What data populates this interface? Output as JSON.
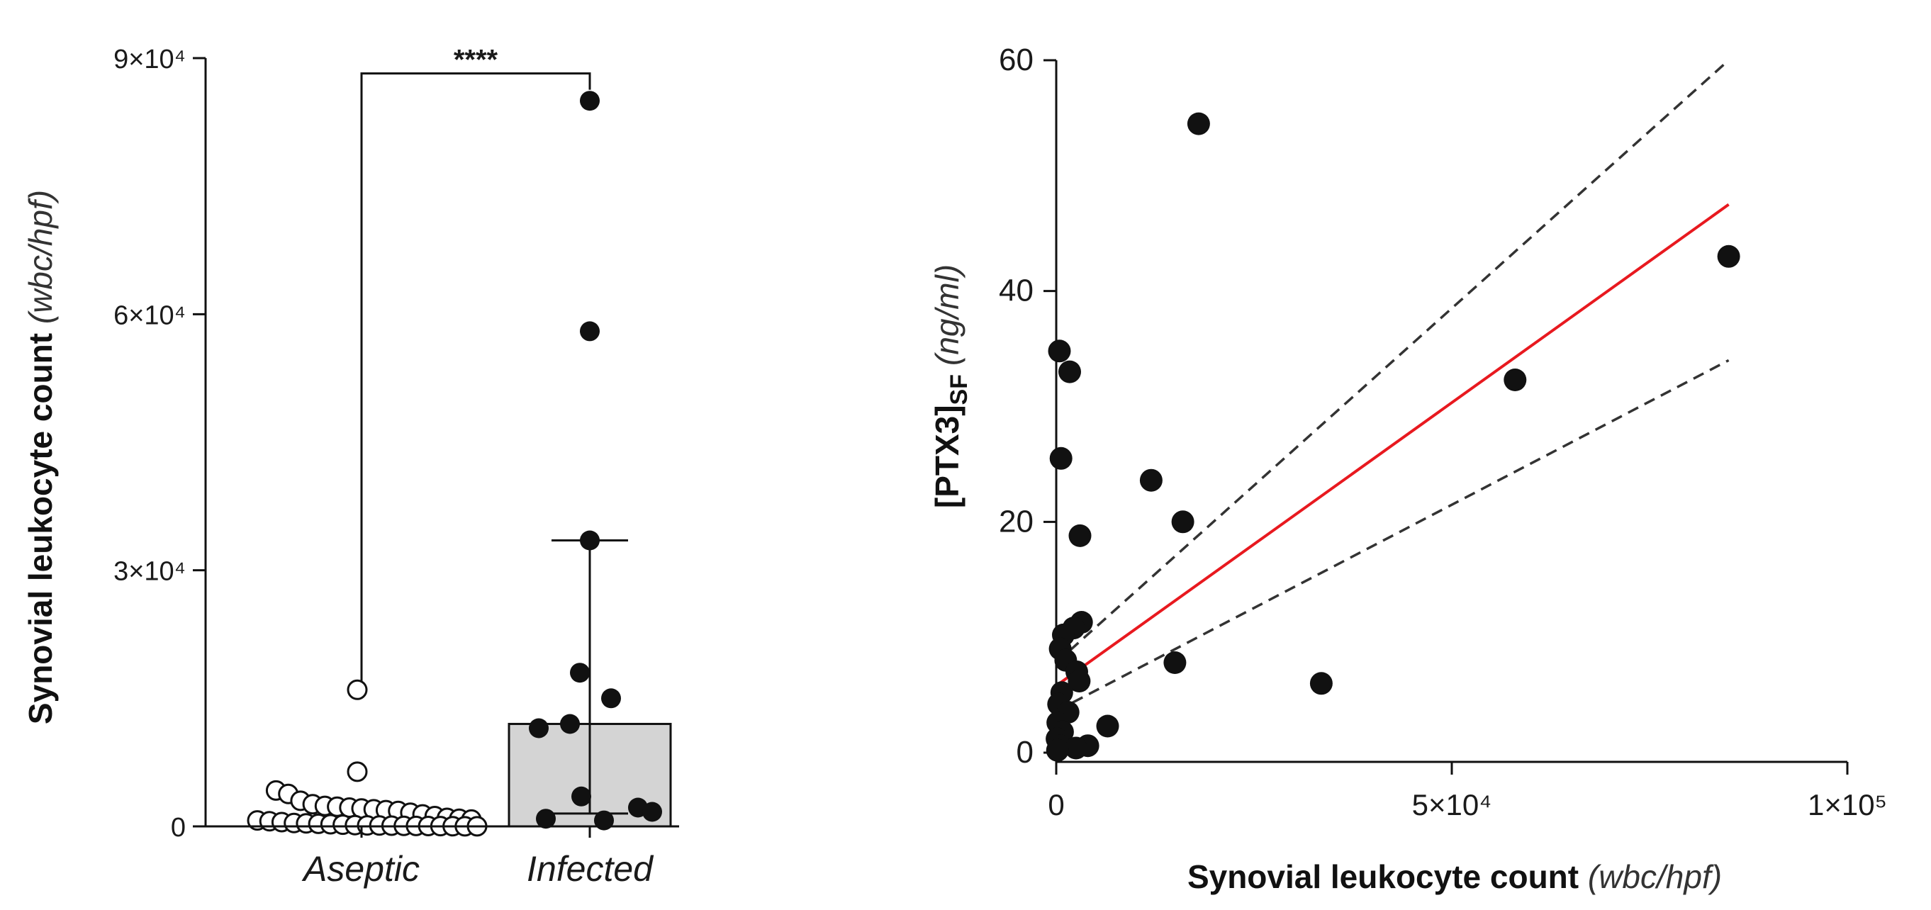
{
  "chart_data": [
    {
      "type": "bar",
      "name": "leukocyte-by-group",
      "categories": [
        "Aseptic",
        "Infected"
      ],
      "bar_values": [
        0,
        12000
      ],
      "error_bars": [
        null,
        {
          "low": 1500,
          "high": 33500
        }
      ],
      "ylabel": "Synovial leukocyte count",
      "ylabel_unit": "(wbc/hpf)",
      "ylim": [
        0,
        90000
      ],
      "y_ticks": [
        0,
        30000,
        60000,
        90000
      ],
      "y_tick_labels": [
        "0",
        "3×10⁴",
        "6×10⁴",
        "9×10⁴"
      ],
      "significance_label": "****",
      "points": {
        "Aseptic": {
          "marker": "open-circle",
          "values": [
            16000,
            6400,
            4200,
            3800,
            3000,
            2600,
            2400,
            2300,
            2200,
            2100,
            2000,
            1900,
            1800,
            1600,
            1400,
            1200,
            1000,
            900,
            800,
            700,
            600,
            500,
            400,
            350,
            300,
            250,
            200,
            150,
            120,
            100,
            80,
            60,
            50,
            40,
            30,
            20,
            10,
            5
          ]
        },
        "Infected": {
          "marker": "filled-circle",
          "values": [
            85000,
            58000,
            33500,
            18000,
            15000,
            12000,
            11500,
            3500,
            2200,
            1700,
            900,
            700
          ]
        }
      }
    },
    {
      "type": "scatter",
      "name": "ptx3-vs-leukocyte",
      "xlabel": "Synovial leukocyte count",
      "xlabel_unit": "(wbc/hpf)",
      "ylabel_main": "[PTX3]",
      "ylabel_sub": "SF",
      "ylabel_unit": "(ng/ml)",
      "xlim": [
        0,
        100000
      ],
      "ylim": [
        0,
        60
      ],
      "x_ticks": [
        0,
        50000,
        100000
      ],
      "x_tick_labels": [
        "0",
        "5×10⁴",
        "1×10⁵"
      ],
      "y_ticks": [
        0,
        20,
        40,
        60
      ],
      "y_tick_labels": [
        "0",
        "20",
        "40",
        "60"
      ],
      "points": [
        {
          "x": 18000,
          "y": 54.5
        },
        {
          "x": 85000,
          "y": 43
        },
        {
          "x": 58000,
          "y": 32.3
        },
        {
          "x": 12000,
          "y": 23.6
        },
        {
          "x": 16000,
          "y": 20
        },
        {
          "x": 3000,
          "y": 18.8
        },
        {
          "x": 33500,
          "y": 6
        },
        {
          "x": 15000,
          "y": 7.8
        },
        {
          "x": 6500,
          "y": 2.3
        },
        {
          "x": 400,
          "y": 34.8
        },
        {
          "x": 1700,
          "y": 33
        },
        {
          "x": 600,
          "y": 25.5
        },
        {
          "x": 3200,
          "y": 11.3
        },
        {
          "x": 2200,
          "y": 10.8
        },
        {
          "x": 900,
          "y": 10.2
        },
        {
          "x": 500,
          "y": 9
        },
        {
          "x": 1200,
          "y": 8
        },
        {
          "x": 2600,
          "y": 7
        },
        {
          "x": 2900,
          "y": 6.2
        },
        {
          "x": 700,
          "y": 5.2
        },
        {
          "x": 300,
          "y": 4.2
        },
        {
          "x": 1500,
          "y": 3.5
        },
        {
          "x": 200,
          "y": 2.6
        },
        {
          "x": 800,
          "y": 1.8
        },
        {
          "x": 100,
          "y": 1.2
        },
        {
          "x": 500,
          "y": 0.6
        },
        {
          "x": 4000,
          "y": 0.6
        },
        {
          "x": 2500,
          "y": 0.4
        },
        {
          "x": 150,
          "y": 0.2
        }
      ],
      "fit": {
        "color": "#e8191f",
        "x_range": [
          0,
          85000
        ],
        "y_start": 5.8,
        "y_end": 47.5
      },
      "ci_upper": {
        "x_range": [
          0,
          85000
        ],
        "y_start": 7.8,
        "y_end": 60
      },
      "ci_lower": {
        "x_range": [
          0,
          85000
        ],
        "y_start": 3.6,
        "y_end": 34
      }
    }
  ]
}
